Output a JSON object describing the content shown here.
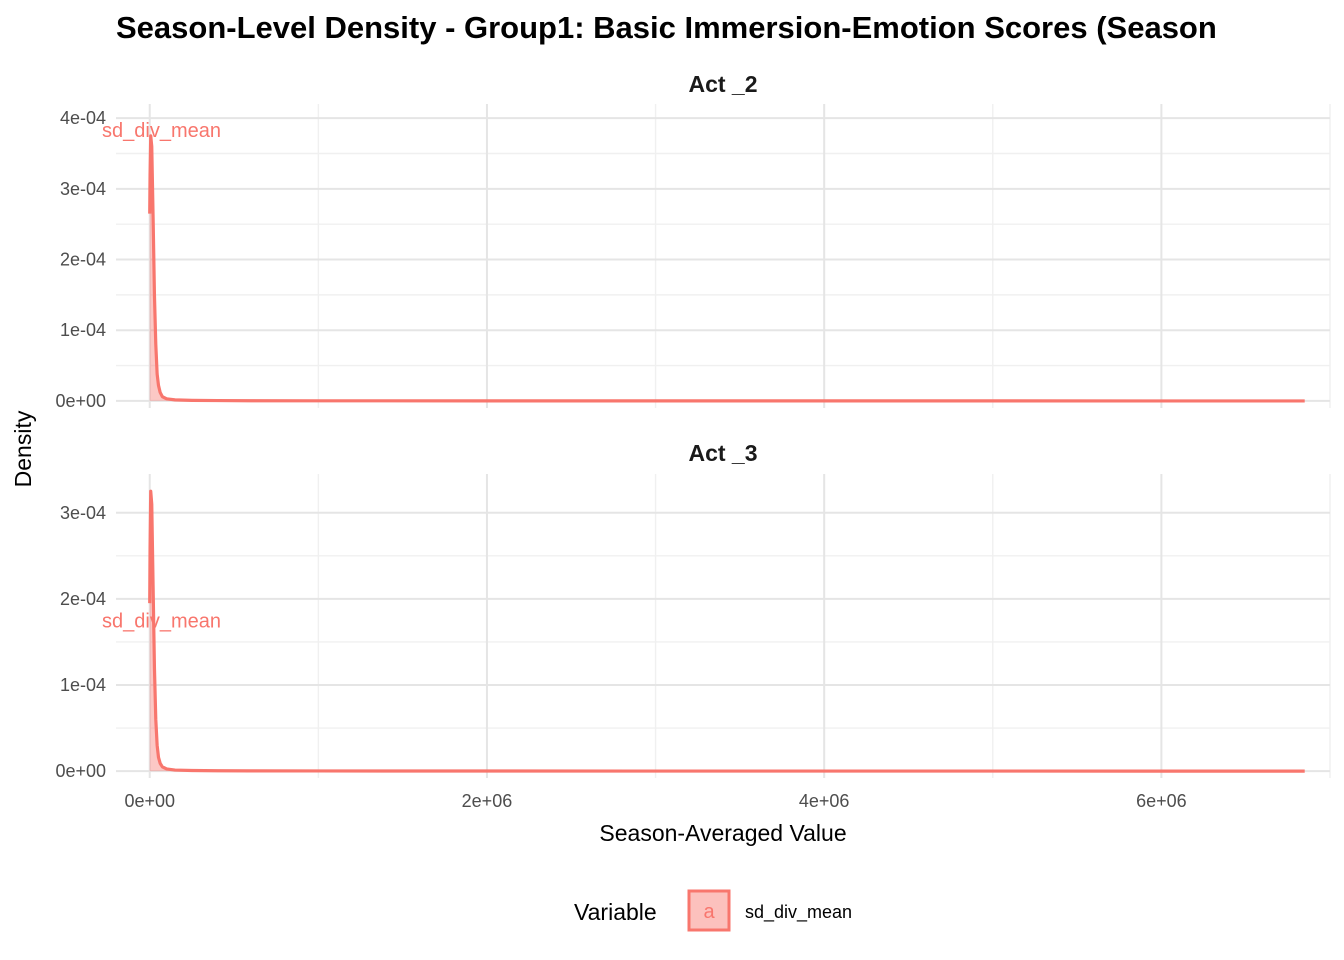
{
  "chart_data": {
    "type": "area",
    "title": "Season-Level Density - Group1: Basic Immersion-Emotion Scores (Season",
    "xlabel": "Season-Averaged Value",
    "ylabel": "Density",
    "x_ticks": [
      "0e+00",
      "2e+06",
      "4e+06",
      "6e+06"
    ],
    "x_tick_values": [
      0,
      2000000,
      4000000,
      6000000
    ],
    "xlim": [
      -200000,
      7000000
    ],
    "grid": true,
    "legend": {
      "title": "Variable",
      "position": "bottom",
      "key_glyph": "a",
      "entries": [
        {
          "label": "sd_div_mean",
          "color": "#F8766D"
        }
      ]
    },
    "colors": {
      "series": "#F8766D",
      "fill": "#F8766D"
    },
    "panels": [
      {
        "strip": "Act _2",
        "ylim": [
          -1e-05,
          0.00042
        ],
        "y_ticks": [
          "0e+00",
          "1e-04",
          "2e-04",
          "3e-04",
          "4e-04"
        ],
        "y_tick_values": [
          0,
          0.0001,
          0.0002,
          0.0003,
          0.0004
        ],
        "annotation": {
          "text": "sd_div_mean",
          "x": 70000,
          "y": 0.000383
        },
        "series": [
          {
            "name": "sd_div_mean",
            "x": [
              0,
              2000,
              6000,
              12000,
              20000,
              28000,
              36000,
              44000,
              52000,
              62000,
              75000,
              100000,
              150000,
              250000,
              400000,
              600000,
              1000000,
              2000000,
              4000000,
              6000000,
              6850000
            ],
            "y": [
              0.000265,
              0.00032,
              0.000375,
              0.00036,
              0.00026,
              0.00015,
              8e-05,
              3.8e-05,
              2.2e-05,
              1.2e-05,
              6e-06,
              3e-06,
              1.5e-06,
              8e-07,
              5e-07,
              3e-07,
              2e-07,
              1e-07,
              5e-08,
              2e-08,
              0
            ]
          }
        ]
      },
      {
        "strip": "Act _3",
        "ylim": [
          -8e-06,
          0.000345
        ],
        "y_ticks": [
          "0e+00",
          "1e-04",
          "2e-04",
          "3e-04"
        ],
        "y_tick_values": [
          0,
          0.0001,
          0.0002,
          0.0003
        ],
        "annotation": {
          "text": "sd_div_mean",
          "x": 70000,
          "y": 0.000175
        },
        "series": [
          {
            "name": "sd_div_mean",
            "x": [
              0,
              2000,
              6000,
              12000,
              20000,
              28000,
              36000,
              44000,
              52000,
              62000,
              75000,
              100000,
              150000,
              250000,
              400000,
              600000,
              1000000,
              2000000,
              4000000,
              6000000,
              6850000
            ],
            "y": [
              0.000195,
              0.00026,
              0.000325,
              0.00031,
              0.000215,
              0.00012,
              6e-05,
              3e-05,
              1.6e-05,
              9e-06,
              5e-06,
              2.5e-06,
              1.2e-06,
              7e-07,
              4e-07,
              3e-07,
              2e-07,
              1e-07,
              5e-08,
              2e-08,
              0
            ]
          }
        ]
      }
    ]
  }
}
